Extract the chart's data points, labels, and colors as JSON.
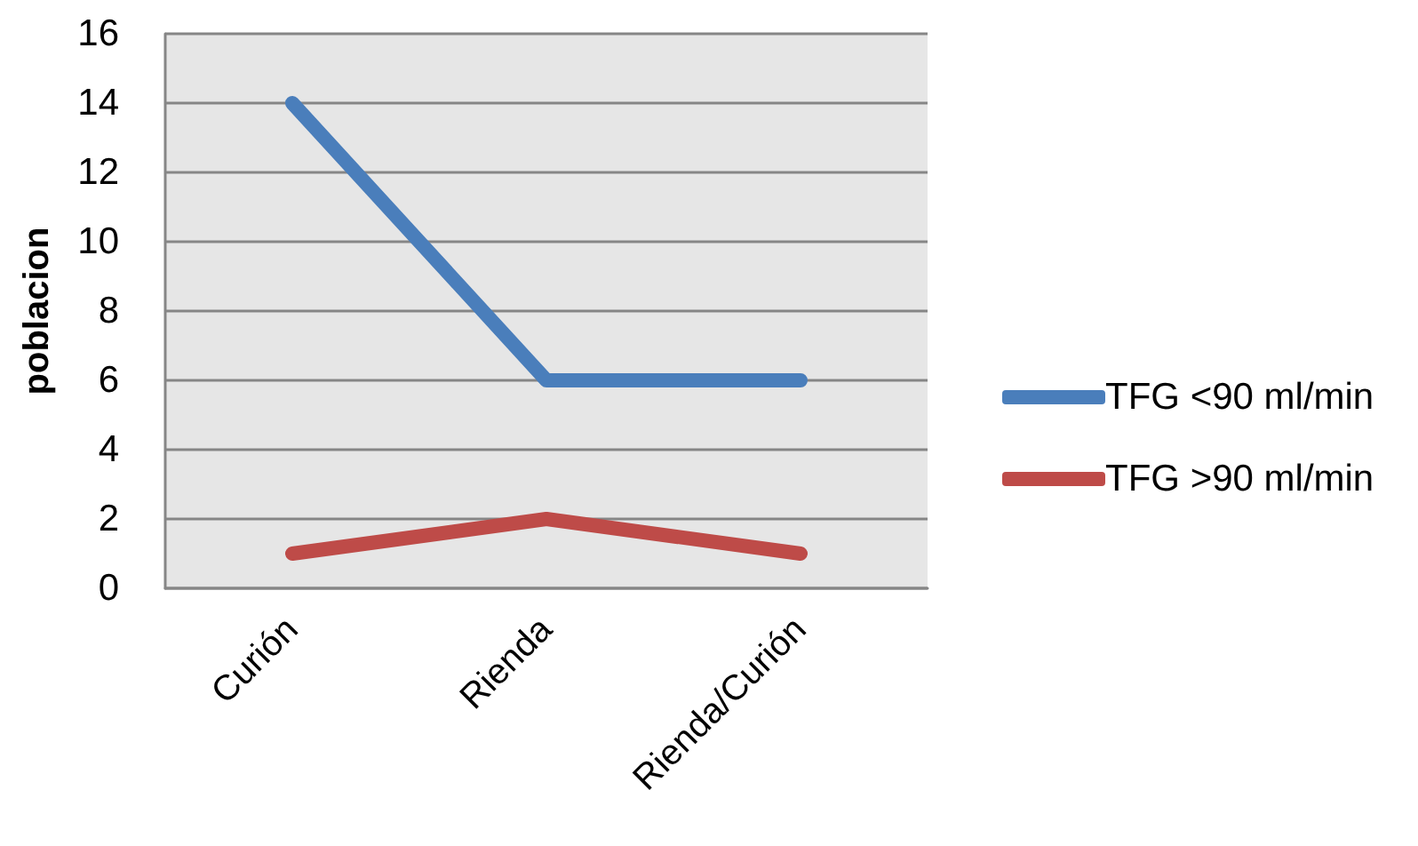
{
  "chart_data": {
    "type": "line",
    "ylabel": "poblacion",
    "categories": [
      "Curión",
      "Rienda",
      "Rienda/Curión"
    ],
    "series": [
      {
        "name": "TFG <90 ml/min",
        "color": "#4a7ebb",
        "values": [
          14,
          6,
          6
        ]
      },
      {
        "name": "TFG >90 ml/min",
        "color": "#be4b48",
        "values": [
          1,
          2,
          1
        ]
      }
    ],
    "ylim": [
      0,
      16
    ],
    "yticks": [
      0,
      2,
      4,
      6,
      8,
      10,
      12,
      14,
      16
    ],
    "grid": "y",
    "legend": "right",
    "marker": "none",
    "line_style": "solid"
  }
}
